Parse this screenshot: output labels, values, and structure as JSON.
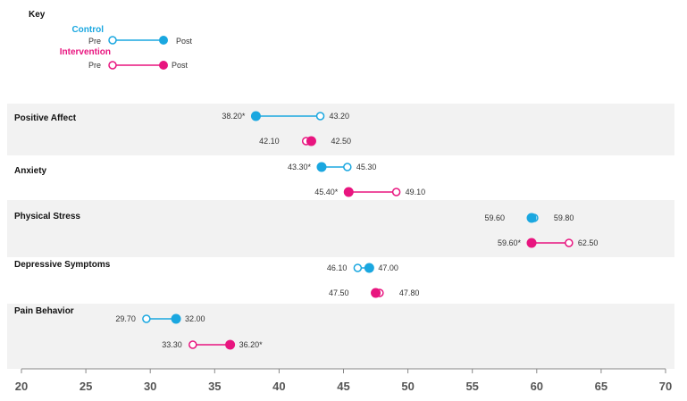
{
  "chart_data": {
    "type": "dumbbell",
    "key": {
      "title": "Key",
      "groups": [
        {
          "name": "Control",
          "pre_label": "Pre",
          "post_label": "Post"
        },
        {
          "name": "Intervention",
          "pre_label": "Pre",
          "post_label": "Post"
        }
      ]
    },
    "colors": {
      "Control": "#1aa7e0",
      "Intervention": "#e8157f",
      "band": "#f2f2f2",
      "axis": "#888888"
    },
    "xlim": [
      20,
      70
    ],
    "xticks": [
      20,
      25,
      30,
      35,
      40,
      45,
      50,
      55,
      60,
      65,
      70
    ],
    "categories": [
      {
        "name": "Positive Affect",
        "shaded": true,
        "rows": [
          {
            "group": "Control",
            "pre": 43.2,
            "post": 38.2,
            "pre_label": "43.20",
            "post_label": "38.20",
            "post_sig": true,
            "pre_sig": false
          },
          {
            "group": "Intervention",
            "pre": 42.1,
            "post": 42.5,
            "pre_label": "42.10",
            "post_label": "42.50",
            "post_sig": false,
            "pre_sig": false
          }
        ]
      },
      {
        "name": "Anxiety",
        "shaded": false,
        "rows": [
          {
            "group": "Control",
            "pre": 45.3,
            "post": 43.3,
            "pre_label": "45.30",
            "post_label": "43.30",
            "post_sig": true,
            "pre_sig": false
          },
          {
            "group": "Intervention",
            "pre": 49.1,
            "post": 45.4,
            "pre_label": "49.10",
            "post_label": "45.40",
            "post_sig": true,
            "pre_sig": false
          }
        ]
      },
      {
        "name": "Physical Stress",
        "shaded": true,
        "rows": [
          {
            "group": "Control",
            "pre": 59.8,
            "post": 59.6,
            "pre_label": "59.80",
            "post_label": "59.60",
            "post_sig": false,
            "pre_sig": false
          },
          {
            "group": "Intervention",
            "pre": 62.5,
            "post": 59.6,
            "pre_label": "62.50",
            "post_label": "59.60",
            "post_sig": true,
            "pre_sig": false
          }
        ]
      },
      {
        "name": "Depressive Symptoms",
        "shaded": false,
        "rows": [
          {
            "group": "Control",
            "pre": 46.1,
            "post": 47.0,
            "pre_label": "46.10",
            "post_label": "47.00",
            "post_sig": false,
            "pre_sig": false
          },
          {
            "group": "Intervention",
            "pre": 47.8,
            "post": 47.5,
            "pre_label": "47.80",
            "post_label": "47.50",
            "post_sig": false,
            "pre_sig": false
          }
        ]
      },
      {
        "name": "Pain Behavior",
        "shaded": true,
        "rows": [
          {
            "group": "Control",
            "pre": 29.7,
            "post": 32.0,
            "pre_label": "29.70",
            "post_label": "32.00",
            "post_sig": false,
            "pre_sig": false
          },
          {
            "group": "Intervention",
            "pre": 33.3,
            "post": 36.2,
            "pre_label": "33.30",
            "post_label": "36.20",
            "post_sig": true,
            "pre_sig": false
          }
        ]
      }
    ]
  }
}
